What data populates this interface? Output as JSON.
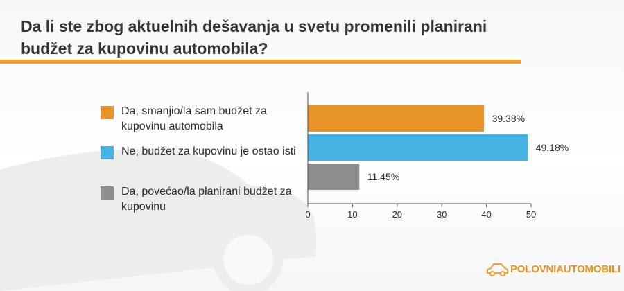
{
  "title": "Da li ste zbog aktuelnih dešavanja u svetu promenili planirani budžet za kupovinu automobila?",
  "brand": {
    "part1": "POLOVNI",
    "part2": "AUTOMOBILI",
    "logo_icon": "car-outline-icon",
    "accent": "#f0a12c",
    "text_color": "#e8931f"
  },
  "colors": {
    "title_rule": "#f0a12c",
    "series": [
      "#e99428",
      "#45b4e5",
      "#8e8e8e"
    ],
    "car_silhouette": "#ededed"
  },
  "chart_data": {
    "type": "bar",
    "orientation": "horizontal",
    "categories": [
      "Da, smanjio/la sam budžet za kupovinu automobila",
      "Ne, budžet za kupovinu je ostao isti",
      "Da, povećao/la planirani budžet za kupovinu"
    ],
    "values": [
      39.38,
      49.18,
      11.45
    ],
    "value_labels": [
      "39.38%",
      "49.18%",
      "11.45%"
    ],
    "xlim": [
      0,
      50
    ],
    "xticks": [
      0,
      10,
      20,
      30,
      40,
      50
    ],
    "grid": false,
    "legend": "left"
  }
}
